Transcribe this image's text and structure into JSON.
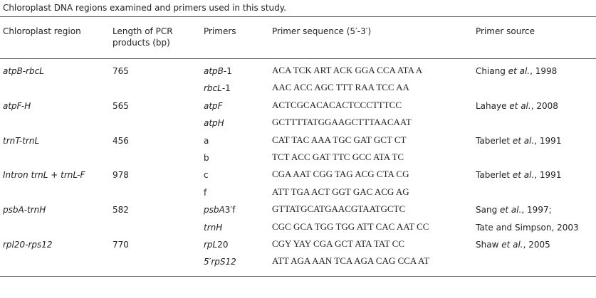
{
  "title": "Chloroplast DNA regions examined and primers used in this study.",
  "table": {
    "header": [
      "Chloroplast region",
      "Length of PCR products (bp)",
      "Primers",
      "Primer sequence (5′-3′)",
      "Primer source"
    ],
    "groups": [
      {
        "region": [
          {
            "text": "atpB-rbcL",
            "italic": true
          }
        ],
        "length": "765",
        "primers": [
          {
            "name": [
              {
                "text": "atpB",
                "italic": true
              },
              {
                "text": "-1",
                "italic": false
              }
            ],
            "sequence": "ACA TCK ART ACK GGA CCA ATA A",
            "source": [
              {
                "text": "Chiang ",
                "italic": false
              },
              {
                "text": "et al.",
                "italic": true
              },
              {
                "text": ", 1998",
                "italic": false
              }
            ]
          },
          {
            "name": [
              {
                "text": "rbcL",
                "italic": true
              },
              {
                "text": "-1",
                "italic": false
              }
            ],
            "sequence": "AAC ACC AGC TTT RAA TCC AA"
          }
        ]
      },
      {
        "region": [
          {
            "text": "atpF-H",
            "italic": true
          }
        ],
        "length": "565",
        "primers": [
          {
            "name": [
              {
                "text": "atpF",
                "italic": true
              }
            ],
            "sequence": "ACTCGCACACACTCCCTTTCC",
            "source": [
              {
                "text": "Lahaye ",
                "italic": false
              },
              {
                "text": "et al.",
                "italic": true
              },
              {
                "text": ", 2008",
                "italic": false
              }
            ]
          },
          {
            "name": [
              {
                "text": "atpH",
                "italic": true
              }
            ],
            "sequence": "GCTTTTATGGAAGCTTTAACAAT"
          }
        ]
      },
      {
        "region": [
          {
            "text": "trnT-trnL",
            "italic": true
          }
        ],
        "length": "456",
        "primers": [
          {
            "name": [
              {
                "text": "a",
                "italic": false
              }
            ],
            "sequence": "CAT TAC AAA TGC GAT GCT CT",
            "source": [
              {
                "text": "Taberlet ",
                "italic": false
              },
              {
                "text": "et al.",
                "italic": true
              },
              {
                "text": ", 1991",
                "italic": false
              }
            ]
          },
          {
            "name": [
              {
                "text": "b",
                "italic": false
              }
            ],
            "sequence": "TCT ACC GAT TTC GCC ATA TC"
          }
        ]
      },
      {
        "region": [
          {
            "text": "Intron trnL + trnL-F",
            "italic": true
          }
        ],
        "length": "978",
        "primers": [
          {
            "name": [
              {
                "text": "c",
                "italic": false
              }
            ],
            "sequence": "CGA AAT CGG TAG ACG CTA CG",
            "source": [
              {
                "text": "Taberlet ",
                "italic": false
              },
              {
                "text": "et al.",
                "italic": true
              },
              {
                "text": ", 1991",
                "italic": false
              }
            ]
          },
          {
            "name": [
              {
                "text": "f",
                "italic": false
              }
            ],
            "sequence": "ATT TGA ACT GGT GAC ACG AG"
          }
        ]
      },
      {
        "region": [
          {
            "text": "psbA-trnH",
            "italic": true
          }
        ],
        "length": "582",
        "primers": [
          {
            "name": [
              {
                "text": "psbA",
                "italic": true
              },
              {
                "text": "3′f",
                "italic": false
              }
            ],
            "sequence": "GTTATGCATGAACGTAATGCTC",
            "source": [
              {
                "text": "Sang ",
                "italic": false
              },
              {
                "text": "et al.",
                "italic": true
              },
              {
                "text": ", 1997;",
                "italic": false
              }
            ]
          },
          {
            "name": [
              {
                "text": "trnH",
                "italic": true
              }
            ],
            "sequence": "CGC GCA TGG TGG ATT CAC AAT CC",
            "source": [
              {
                "text": "Tate and Simpson, 2003",
                "italic": false
              }
            ]
          }
        ]
      },
      {
        "region": [
          {
            "text": "rpl20-rps12",
            "italic": true
          }
        ],
        "length": "770",
        "primers": [
          {
            "name": [
              {
                "text": "rpL",
                "italic": true
              },
              {
                "text": "20",
                "italic": false
              }
            ],
            "sequence": "CGY YAY CGA GCT ATA TAT CC",
            "source": [
              {
                "text": "Shaw ",
                "italic": false
              },
              {
                "text": "et al.",
                "italic": true
              },
              {
                "text": ", 2005",
                "italic": false
              }
            ]
          },
          {
            "name": [
              {
                "text": "5′rpS12",
                "italic": true
              }
            ],
            "sequence": "ATT AGA AAN TCA AGA CAG CCA AT"
          }
        ]
      }
    ]
  }
}
